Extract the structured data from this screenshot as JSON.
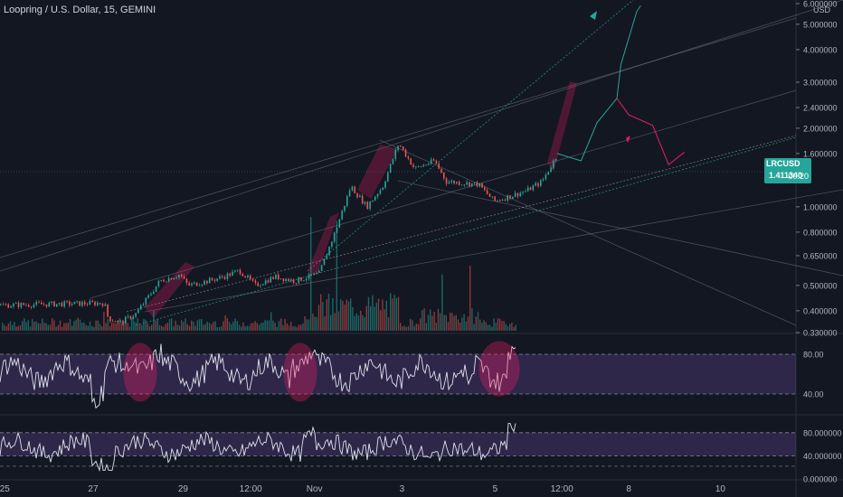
{
  "chart_title": "Loopring / U.S. Dollar, 15, GEMINI",
  "currency_label": "USD",
  "last_price": {
    "symbol": "LRCUSD",
    "value": "1.411340",
    "countdown": "00:20"
  },
  "colors": {
    "background": "#131722",
    "up": "#26a69a",
    "down": "#ef5350",
    "oscillator_band": "#7e57c2",
    "highlight": "#e91e63"
  },
  "chart_data": {
    "type": "candlestick",
    "x_tick_labels": [
      "25",
      "27",
      "29",
      "12:00",
      "Nov",
      "3",
      "5",
      "12:00",
      "8",
      "10"
    ],
    "price_axis": {
      "scale": "log",
      "range": [
        0.33,
        6.0
      ],
      "tick_labels": [
        "6.000000",
        "5.000000",
        "4.000000",
        "3.000000",
        "2.400000",
        "2.000000",
        "1.600000",
        "1.000000",
        "0.800000",
        "0.650000",
        "0.500000",
        "0.400000",
        "0.330000"
      ]
    },
    "price_path": [
      [
        0,
        0.42
      ],
      [
        0.08,
        0.425
      ],
      [
        0.13,
        0.428
      ],
      [
        0.135,
        0.375
      ],
      [
        0.15,
        0.36
      ],
      [
        0.17,
        0.39
      ],
      [
        0.2,
        0.52
      ],
      [
        0.225,
        0.55
      ],
      [
        0.235,
        0.5
      ],
      [
        0.26,
        0.52
      ],
      [
        0.28,
        0.54
      ],
      [
        0.3,
        0.57
      ],
      [
        0.32,
        0.5
      ],
      [
        0.345,
        0.54
      ],
      [
        0.37,
        0.52
      ],
      [
        0.4,
        0.555
      ],
      [
        0.42,
        0.8
      ],
      [
        0.44,
        1.2
      ],
      [
        0.46,
        1.0
      ],
      [
        0.48,
        1.2
      ],
      [
        0.5,
        1.75
      ],
      [
        0.52,
        1.4
      ],
      [
        0.545,
        1.5
      ],
      [
        0.56,
        1.25
      ],
      [
        0.6,
        1.22
      ],
      [
        0.62,
        1.05
      ],
      [
        0.66,
        1.15
      ],
      [
        0.68,
        1.25
      ],
      [
        0.7,
        1.6
      ]
    ],
    "projection": [
      [
        0.7,
        1.6
      ],
      [
        0.73,
        1.5
      ],
      [
        0.75,
        2.1
      ],
      [
        0.775,
        2.6
      ],
      [
        0.78,
        3.5
      ],
      [
        0.8,
        5.6
      ],
      [
        0.805,
        5.9
      ]
    ],
    "projection_pullback": [
      [
        0.775,
        2.6
      ],
      [
        0.79,
        2.25
      ],
      [
        0.82,
        2.05
      ],
      [
        0.84,
        1.45
      ],
      [
        0.86,
        1.62
      ]
    ],
    "oscillator_1": {
      "tick_labels": [
        "80.00",
        "40.00"
      ],
      "band": [
        40,
        80
      ],
      "range": [
        20,
        100
      ]
    },
    "oscillator_2": {
      "tick_labels": [
        "80.000000",
        "40.000000",
        "0.000000"
      ],
      "band": [
        40,
        80
      ],
      "range": [
        0,
        100
      ]
    }
  }
}
